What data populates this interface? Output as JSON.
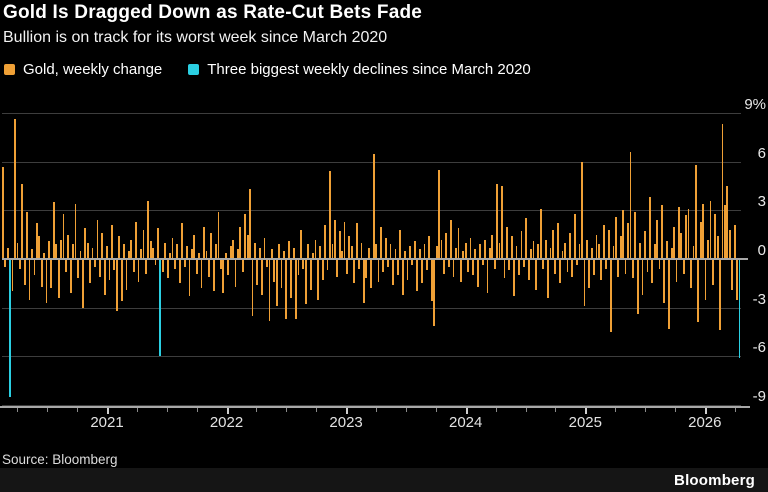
{
  "header": {
    "title": "Gold Is Dragged Down as Rate-Cut Bets Fade",
    "subtitle": "Bullion is on track for its worst week since March 2020"
  },
  "source_line": "Source: Bloomberg",
  "branding": "Bloomberg",
  "chart_data": {
    "type": "bar",
    "title": "Gold Is Dragged Down as Rate-Cut Bets Fade",
    "subtitle": "Bullion is on track for its worst week since March 2020",
    "x_unit": "week",
    "x_range": [
      "March 2020",
      "early 2026"
    ],
    "ylim": [
      -9,
      9
    ],
    "grid": true,
    "legend_position": "top",
    "yticks": [
      {
        "value": 9,
        "label": "9%"
      },
      {
        "value": 6,
        "label": "6"
      },
      {
        "value": 3,
        "label": "3"
      },
      {
        "value": 0,
        "label": "0"
      },
      {
        "value": -3,
        "label": "-3"
      },
      {
        "value": -6,
        "label": "-6"
      },
      {
        "value": -9,
        "label": "-9"
      }
    ],
    "xaxis": {
      "years": [
        "2021",
        "2022",
        "2023",
        "2024",
        "2025",
        "2026"
      ],
      "start_frac": 0.0207,
      "step_frac": 0.04045,
      "tick_count": 25,
      "major_every": 4,
      "first_major_index": 3
    },
    "series": [
      {
        "name": "Gold, weekly change",
        "color": "#EFA036"
      },
      {
        "name": "Three biggest weekly declines since March 2020",
        "color": "#2BCFE2"
      }
    ],
    "colors": {
      "bar": "#EFA036",
      "highlight": "#2BCFE2",
      "grid": "#3d3d3d",
      "axis": "#a8a8a8"
    },
    "highlight_indices": [
      3,
      65,
      304
    ],
    "values": [
      5.7,
      -0.5,
      0.7,
      -8.5,
      -2.0,
      8.6,
      1.0,
      -0.6,
      4.6,
      -1.6,
      2.9,
      -2.5,
      0.6,
      -1.0,
      2.2,
      1.4,
      -1.7,
      0.4,
      -2.7,
      1.1,
      -1.8,
      3.5,
      0.9,
      -2.4,
      1.2,
      2.8,
      -0.8,
      1.5,
      -2.1,
      0.9,
      3.4,
      -1.2,
      0.5,
      -3.0,
      1.9,
      1.0,
      -1.5,
      0.7,
      -0.5,
      2.4,
      -1.1,
      1.6,
      -2.2,
      0.8,
      -1.3,
      2.1,
      -0.7,
      -3.2,
      1.4,
      -2.6,
      0.9,
      -1.9,
      0.5,
      1.2,
      -0.8,
      2.3,
      -1.4,
      0.6,
      1.8,
      -0.9,
      3.6,
      1.1,
      0.7,
      -0.4,
      1.9,
      -6.0,
      -0.8,
      1.0,
      -1.2,
      0.4,
      1.3,
      -0.6,
      0.9,
      -1.5,
      2.2,
      -0.5,
      0.8,
      -2.3,
      0.6,
      1.5,
      -0.9,
      0.4,
      -1.8,
      2.0,
      0.5,
      -1.1,
      1.6,
      -2.0,
      0.9,
      2.9,
      -0.6,
      -2.1,
      0.4,
      -1.0,
      0.8,
      1.2,
      -1.7,
      0.6,
      2.0,
      -0.8,
      2.8,
      1.5,
      4.3,
      -3.5,
      1.0,
      -1.6,
      0.7,
      -2.2,
      1.3,
      -0.5,
      -3.8,
      0.6,
      -1.4,
      -2.9,
      0.9,
      -1.8,
      0.5,
      -3.7,
      1.1,
      -2.4,
      0.7,
      -3.7,
      -1.0,
      1.8,
      -0.6,
      -2.8,
      0.9,
      -1.9,
      0.4,
      1.2,
      -2.5,
      0.8,
      -1.3,
      2.1,
      -0.7,
      5.4,
      0.9,
      2.4,
      -1.1,
      1.7,
      0.5,
      2.3,
      -0.9,
      1.4,
      0.8,
      -1.5,
      2.2,
      -0.6,
      1.0,
      -2.7,
      -1.2,
      0.7,
      -1.8,
      6.5,
      0.9,
      -1.4,
      2.0,
      -0.8,
      1.3,
      -0.5,
      0.9,
      -1.6,
      0.6,
      -1.0,
      1.8,
      -2.2,
      0.5,
      -1.3,
      0.8,
      -0.4,
      1.1,
      -2.0,
      0.6,
      -1.5,
      0.9,
      -0.7,
      1.4,
      -2.6,
      -4.1,
      0.8,
      5.5,
      1.2,
      -0.9,
      1.6,
      -0.5,
      2.4,
      -1.1,
      0.7,
      1.9,
      -1.4,
      0.5,
      1.0,
      -0.8,
      1.3,
      -1.0,
      0.6,
      -1.7,
      0.9,
      -0.4,
      1.2,
      -2.1,
      0.7,
      1.5,
      -0.6,
      4.6,
      1.0,
      4.5,
      -1.2,
      2.0,
      -0.7,
      1.4,
      -2.3,
      0.8,
      -1.0,
      1.7,
      -0.5,
      2.5,
      -1.3,
      0.6,
      1.1,
      -1.9,
      0.9,
      3.1,
      -0.6,
      1.2,
      -2.4,
      0.7,
      1.8,
      -0.9,
      2.2,
      -1.5,
      0.5,
      1.0,
      -0.8,
      1.6,
      -1.1,
      2.8,
      -0.4,
      0.9,
      6.0,
      -2.9,
      1.2,
      -1.8,
      0.7,
      -1.0,
      1.5,
      0.9,
      -1.3,
      2.1,
      -0.6,
      1.8,
      -4.5,
      0.8,
      2.6,
      -1.1,
      1.4,
      3.0,
      -0.9,
      2.2,
      6.6,
      -1.2,
      2.9,
      -3.4,
      1.0,
      -2.2,
      1.7,
      -0.8,
      3.8,
      -1.5,
      0.9,
      2.4,
      -0.6,
      3.3,
      -2.7,
      1.1,
      -4.3,
      0.7,
      2.0,
      -1.4,
      3.2,
      1.6,
      -0.9,
      2.7,
      3.1,
      -1.8,
      0.8,
      5.8,
      -3.9,
      2.3,
      3.4,
      -2.5,
      1.2,
      3.6,
      -1.6,
      2.8,
      1.4,
      -4.4,
      8.3,
      3.3,
      4.5,
      1.8,
      -1.9,
      2.1,
      -2.5,
      -6.1
    ]
  }
}
